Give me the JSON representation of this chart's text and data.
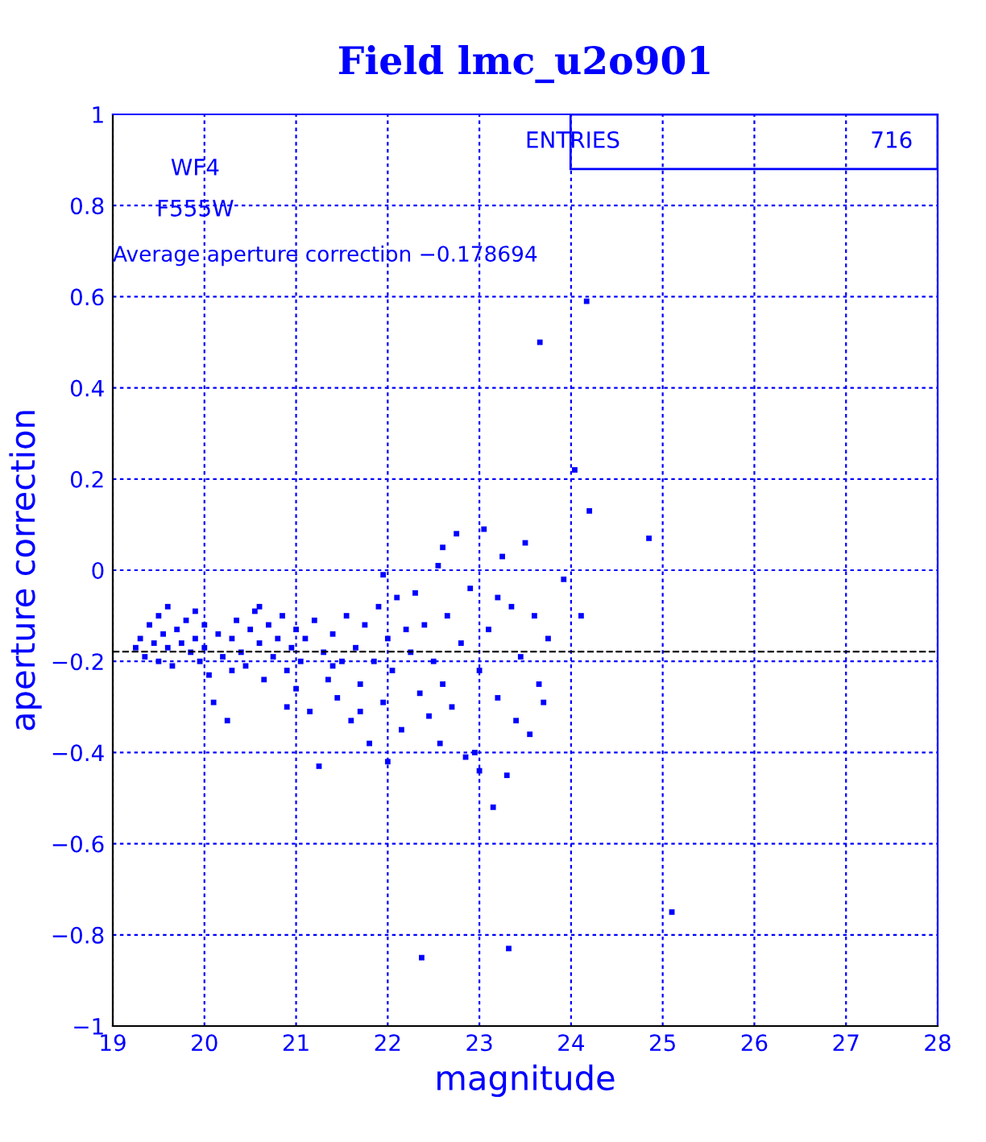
{
  "chart_data": {
    "type": "scatter",
    "title": "Field lmc_u2o901",
    "xlabel": "magnitude",
    "ylabel": "aperture correction",
    "annotations": [
      "WF4",
      "F555W",
      "Average aperture correction −0.178694",
      "ENTRIES",
      "716"
    ],
    "xlim": [
      19,
      28
    ],
    "ylim": [
      -1,
      1
    ],
    "xticks": [
      19,
      20,
      21,
      22,
      23,
      24,
      25,
      26,
      27,
      28
    ],
    "yticks": [
      {
        "value": -1,
        "label": "−1"
      },
      {
        "value": -0.8,
        "label": "−0.8"
      },
      {
        "value": -0.6,
        "label": "−0.6"
      },
      {
        "value": -0.4,
        "label": "−0.4"
      },
      {
        "value": -0.2,
        "label": "−0.2"
      },
      0,
      0.2,
      0.4,
      0.6,
      0.8,
      1
    ],
    "grid": true,
    "marker": "square",
    "ref_lines": [
      {
        "axis": "y",
        "value": -0.178694,
        "color": "#000000",
        "line_style": "dashed"
      }
    ],
    "series": [
      {
        "color": "#0000ff",
        "x": [
          19.25,
          19.3,
          19.35,
          19.4,
          19.45,
          19.5,
          19.5,
          19.55,
          19.6,
          19.65,
          19.7,
          19.75,
          19.8,
          19.85,
          19.9,
          19.95,
          20.0,
          20.0,
          20.05,
          20.1,
          20.15,
          20.2,
          19.6,
          19.9,
          20.25,
          20.3,
          20.35,
          20.4,
          20.45,
          20.5,
          20.55,
          20.6,
          20.65,
          20.7,
          20.75,
          20.8,
          20.85,
          20.9,
          20.95,
          21.0,
          21.0,
          21.05,
          21.1,
          21.15,
          21.2,
          20.3,
          20.6,
          20.9,
          21.25,
          21.3,
          21.35,
          21.4,
          21.45,
          21.5,
          21.55,
          21.6,
          21.65,
          21.7,
          21.75,
          21.8,
          21.85,
          21.9,
          21.95,
          22.0,
          22.05,
          22.1,
          22.15,
          22.2,
          21.95,
          21.4,
          21.7,
          22.0,
          22.25,
          22.3,
          22.35,
          22.37,
          22.4,
          22.45,
          22.5,
          22.55,
          22.57,
          22.6,
          22.65,
          22.7,
          22.75,
          22.8,
          22.85,
          22.9,
          22.95,
          23.0,
          23.05,
          23.1,
          23.15,
          23.2,
          23.25,
          23.3,
          23.32,
          23.35,
          23.4,
          23.45,
          23.5,
          23.55,
          23.6,
          23.65,
          23.7,
          23.75,
          22.6,
          23.0,
          23.2,
          23.66,
          24.17,
          24.04,
          24.2,
          24.85,
          23.92,
          24.11,
          25.1
        ],
        "values": [
          -0.17,
          -0.15,
          -0.19,
          -0.12,
          -0.16,
          -0.1,
          -0.2,
          -0.14,
          -0.17,
          -0.21,
          -0.13,
          -0.16,
          -0.11,
          -0.18,
          -0.15,
          -0.2,
          -0.12,
          -0.17,
          -0.23,
          -0.29,
          -0.14,
          -0.19,
          -0.08,
          -0.09,
          -0.33,
          -0.15,
          -0.11,
          -0.18,
          -0.21,
          -0.13,
          -0.09,
          -0.16,
          -0.24,
          -0.12,
          -0.19,
          -0.15,
          -0.1,
          -0.22,
          -0.17,
          -0.13,
          -0.26,
          -0.2,
          -0.15,
          -0.31,
          -0.11,
          -0.22,
          -0.08,
          -0.3,
          -0.43,
          -0.18,
          -0.24,
          -0.14,
          -0.28,
          -0.2,
          -0.1,
          -0.33,
          -0.17,
          -0.25,
          -0.12,
          -0.38,
          -0.2,
          -0.08,
          -0.29,
          -0.15,
          -0.22,
          -0.06,
          -0.35,
          -0.13,
          -0.01,
          -0.21,
          -0.31,
          -0.42,
          -0.18,
          -0.05,
          -0.27,
          -0.85,
          -0.12,
          -0.32,
          -0.2,
          0.01,
          -0.38,
          -0.25,
          -0.1,
          -0.3,
          0.08,
          -0.16,
          -0.41,
          -0.04,
          -0.4,
          -0.22,
          0.09,
          -0.13,
          -0.52,
          -0.28,
          0.03,
          -0.45,
          -0.83,
          -0.08,
          -0.33,
          -0.19,
          0.06,
          -0.36,
          -0.1,
          -0.25,
          -0.29,
          -0.15,
          0.05,
          -0.44,
          -0.06,
          0.5,
          0.59,
          0.22,
          0.13,
          0.07,
          -0.02,
          -0.1,
          -0.75
        ]
      }
    ]
  }
}
